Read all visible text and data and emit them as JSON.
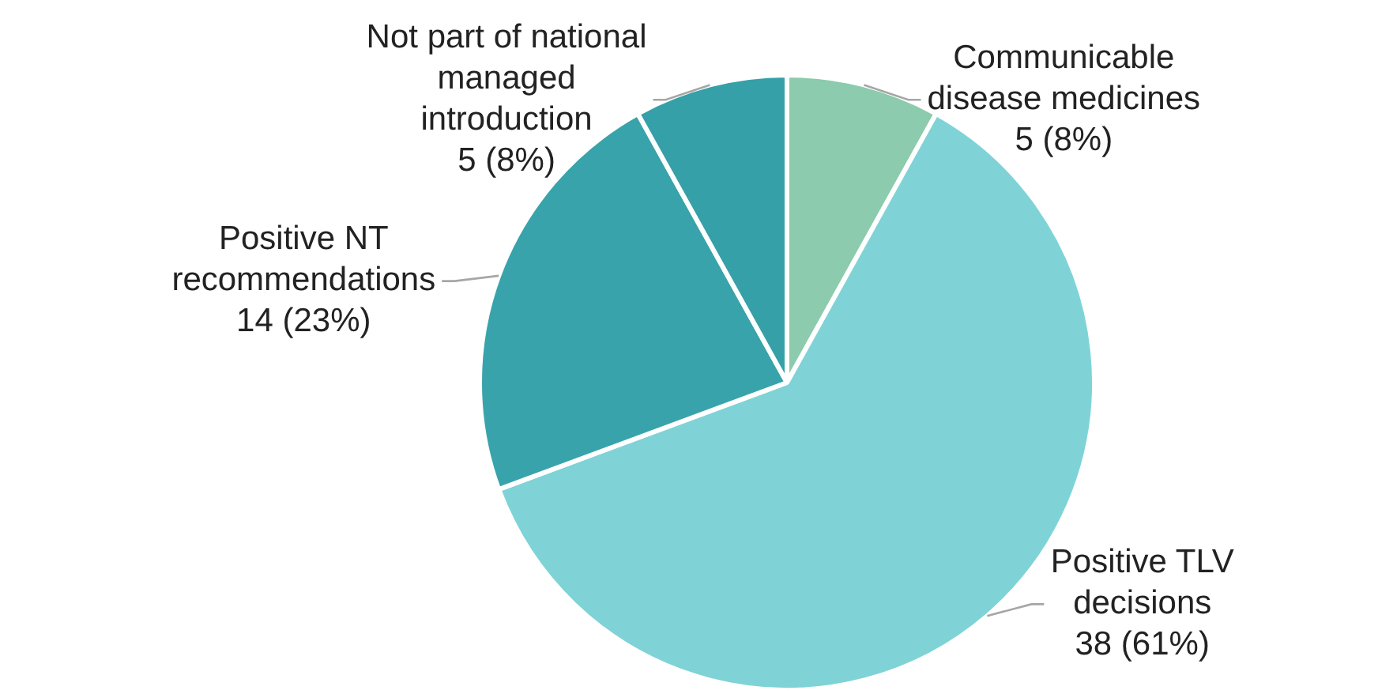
{
  "chart_data": {
    "type": "pie",
    "categories": [
      "Communicable disease medicines",
      "Positive TLV decisions",
      "Positive NT recommendations",
      "Not part of national managed introduction"
    ],
    "values": [
      5,
      38,
      14,
      5
    ],
    "value_labels": [
      "5 (8%)",
      "38 (61%)",
      "14 (23%)",
      "5 (8%)"
    ],
    "colors": [
      "#8ccbad",
      "#7fd3d7",
      "#38a3ab",
      "#35a0a8"
    ],
    "legend": false
  }
}
